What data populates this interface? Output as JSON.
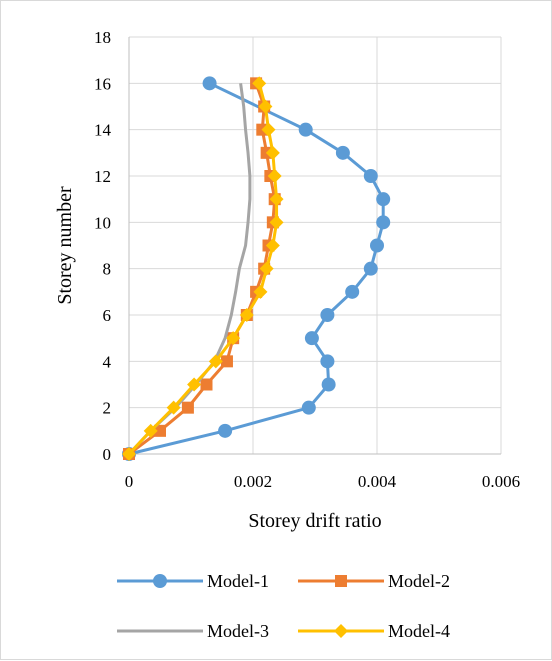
{
  "chart_data": {
    "type": "line",
    "xlabel": "Storey drift ratio",
    "ylabel": "Storey number",
    "xlim": [
      0,
      0.006
    ],
    "ylim": [
      0,
      18
    ],
    "xticks": [
      0,
      0.002,
      0.004,
      0.006
    ],
    "xtick_labels": [
      "0",
      "0.002",
      "0.004",
      "0.006"
    ],
    "yticks": [
      0,
      2,
      4,
      6,
      8,
      10,
      12,
      14,
      16,
      18
    ],
    "ytick_labels": [
      "0",
      "2",
      "4",
      "6",
      "8",
      "10",
      "12",
      "14",
      "16",
      "18"
    ],
    "grid": true,
    "legend_position": "bottom",
    "series": [
      {
        "name": "Model-1",
        "color": "#5b9bd5",
        "marker": "circle",
        "points": [
          [
            0,
            0
          ],
          [
            0.00155,
            1
          ],
          [
            0.0029,
            2
          ],
          [
            0.00322,
            3
          ],
          [
            0.0032,
            4
          ],
          [
            0.00295,
            5
          ],
          [
            0.0032,
            6
          ],
          [
            0.0036,
            7
          ],
          [
            0.0039,
            8
          ],
          [
            0.004,
            9
          ],
          [
            0.0041,
            10
          ],
          [
            0.0041,
            11
          ],
          [
            0.0039,
            12
          ],
          [
            0.00345,
            13
          ],
          [
            0.00285,
            14
          ],
          [
            0.0013,
            16
          ]
        ]
      },
      {
        "name": "Model-2",
        "color": "#ed7d31",
        "marker": "square",
        "points": [
          [
            0,
            0
          ],
          [
            0.0005,
            1
          ],
          [
            0.00095,
            2
          ],
          [
            0.00125,
            3
          ],
          [
            0.00158,
            4
          ],
          [
            0.00168,
            5
          ],
          [
            0.0019,
            6
          ],
          [
            0.00205,
            7
          ],
          [
            0.00218,
            8
          ],
          [
            0.00225,
            9
          ],
          [
            0.00232,
            10
          ],
          [
            0.00235,
            11
          ],
          [
            0.00228,
            12
          ],
          [
            0.00222,
            13
          ],
          [
            0.00215,
            14
          ],
          [
            0.00218,
            15
          ],
          [
            0.00205,
            16
          ]
        ]
      },
      {
        "name": "Model-3",
        "color": "#a5a5a5",
        "marker": "none",
        "points": [
          [
            0,
            0
          ],
          [
            0.00035,
            1
          ],
          [
            0.00075,
            2
          ],
          [
            0.00108,
            3
          ],
          [
            0.00138,
            4
          ],
          [
            0.00155,
            5
          ],
          [
            0.00165,
            6
          ],
          [
            0.00172,
            7
          ],
          [
            0.00178,
            8
          ],
          [
            0.00188,
            9
          ],
          [
            0.00192,
            10
          ],
          [
            0.00195,
            11
          ],
          [
            0.00195,
            12
          ],
          [
            0.00192,
            13
          ],
          [
            0.00188,
            14
          ],
          [
            0.00185,
            15
          ],
          [
            0.0018,
            16
          ]
        ]
      },
      {
        "name": "Model-4",
        "color": "#ffc000",
        "marker": "diamond",
        "points": [
          [
            0,
            0
          ],
          [
            0.00035,
            1
          ],
          [
            0.00072,
            2
          ],
          [
            0.00105,
            3
          ],
          [
            0.0014,
            4
          ],
          [
            0.00168,
            5
          ],
          [
            0.0019,
            6
          ],
          [
            0.00212,
            7
          ],
          [
            0.00222,
            8
          ],
          [
            0.00232,
            9
          ],
          [
            0.00238,
            10
          ],
          [
            0.00238,
            11
          ],
          [
            0.00235,
            12
          ],
          [
            0.00232,
            13
          ],
          [
            0.00225,
            14
          ],
          [
            0.0022,
            15
          ],
          [
            0.0021,
            16
          ]
        ]
      }
    ]
  }
}
